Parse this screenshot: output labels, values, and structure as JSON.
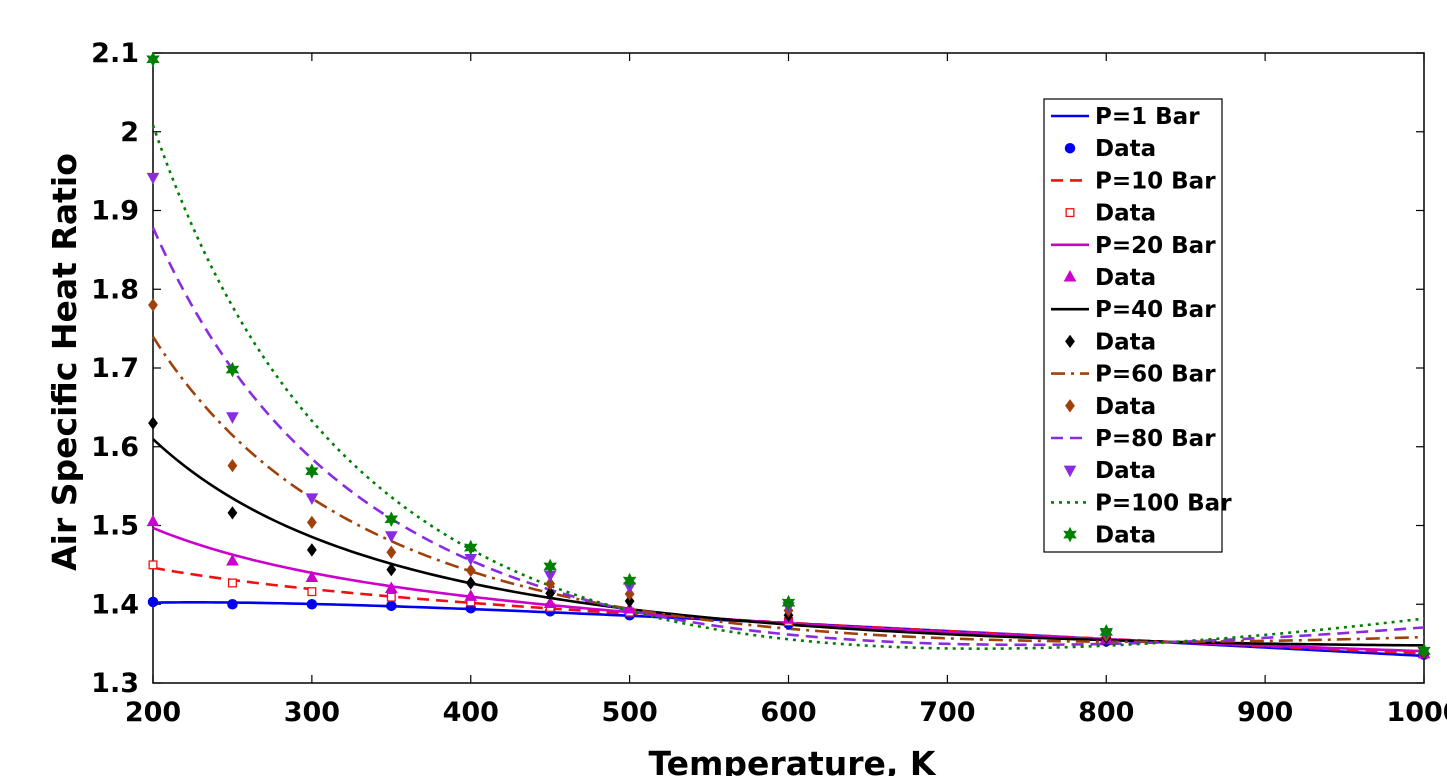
{
  "chart_data": {
    "type": "line",
    "title": "",
    "xlabel": "Temperature, K",
    "ylabel": "Air Specific Heat Ratio",
    "xlim": [
      200,
      1000
    ],
    "ylim": [
      1.3,
      2.1
    ],
    "xticks": [
      200,
      300,
      400,
      500,
      600,
      700,
      800,
      900,
      1000
    ],
    "xtick_labels": [
      "200",
      "300",
      "400",
      "500",
      "600",
      "700",
      "800",
      "900",
      "1000"
    ],
    "yticks": [
      1.3,
      1.4,
      1.5,
      1.6,
      1.7,
      1.8,
      1.9,
      2.0,
      2.1
    ],
    "ytick_labels": [
      "1.3",
      "1.4",
      "1.5",
      "1.6",
      "1.7",
      "1.8",
      "1.9",
      "2",
      "2.1"
    ],
    "grid": false,
    "legend_position": "top-right",
    "x": [
      200,
      250,
      300,
      350,
      400,
      450,
      500,
      600,
      800,
      1000
    ],
    "series": [
      {
        "name": "P=1 Bar",
        "data_name": "Data",
        "color": "#0000ee",
        "dash": "solid",
        "marker": "circle",
        "values": [
          1.403,
          1.4,
          1.4,
          1.398,
          1.395,
          1.391,
          1.386,
          1.375,
          1.353,
          1.336
        ]
      },
      {
        "name": "P=10 Bar",
        "data_name": "Data",
        "color": "#ee1111",
        "dash": "dash",
        "marker": "square",
        "values": [
          1.45,
          1.427,
          1.416,
          1.409,
          1.403,
          1.396,
          1.39,
          1.378,
          1.355,
          1.337
        ]
      },
      {
        "name": "P=20 Bar",
        "data_name": "Data",
        "color": "#cc00cc",
        "dash": "solid",
        "marker": "triangle-up",
        "values": [
          1.505,
          1.455,
          1.434,
          1.42,
          1.41,
          1.401,
          1.394,
          1.381,
          1.356,
          1.337
        ]
      },
      {
        "name": "P=40 Bar",
        "data_name": "Data",
        "color": "#000000",
        "dash": "solid",
        "marker": "diamond",
        "values": [
          1.63,
          1.516,
          1.469,
          1.444,
          1.427,
          1.414,
          1.404,
          1.386,
          1.358,
          1.338
        ]
      },
      {
        "name": "P=60 Bar",
        "data_name": "Data",
        "color": "#a0400a",
        "dash": "dashdot",
        "marker": "diamond",
        "values": [
          1.78,
          1.576,
          1.504,
          1.466,
          1.443,
          1.426,
          1.413,
          1.392,
          1.36,
          1.339
        ]
      },
      {
        "name": "P=80 Bar",
        "data_name": "Data",
        "color": "#8a2be2",
        "dash": "dash",
        "marker": "triangle-down",
        "values": [
          1.942,
          1.638,
          1.535,
          1.487,
          1.458,
          1.437,
          1.422,
          1.397,
          1.362,
          1.34
        ]
      },
      {
        "name": "P=100 Bar",
        "data_name": "Data",
        "color": "#008000",
        "dash": "dot",
        "marker": "star",
        "values": [
          2.092,
          1.698,
          1.569,
          1.508,
          1.472,
          1.448,
          1.43,
          1.402,
          1.365,
          1.341
        ]
      }
    ]
  }
}
